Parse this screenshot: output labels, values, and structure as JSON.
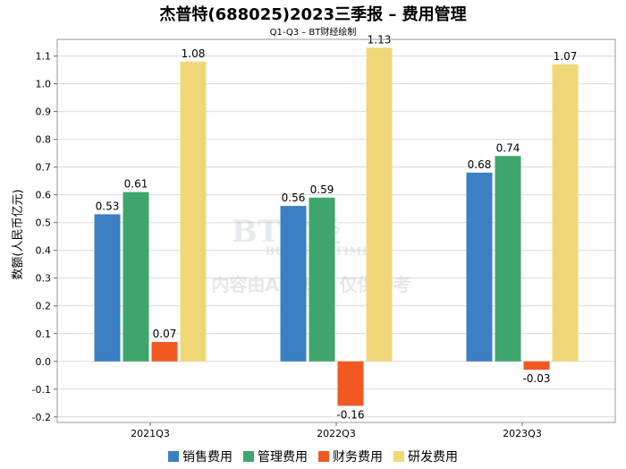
{
  "chart_data": {
    "type": "bar",
    "title": "杰普特(688025)2023三季报 – 费用管理",
    "subtitle": "Q1-Q3 – BT财经绘制",
    "xlabel": "",
    "ylabel": "数额(人民币亿元)",
    "ylim": [
      -0.22,
      1.16
    ],
    "yticks": [
      -0.2,
      -0.1,
      0.0,
      0.1,
      0.2,
      0.3,
      0.4,
      0.5,
      0.6,
      0.7,
      0.8,
      0.9,
      1.0,
      1.1
    ],
    "categories": [
      "2021Q3",
      "2022Q3",
      "2023Q3"
    ],
    "series": [
      {
        "name": "销售费用",
        "color": "#3b7fc4",
        "values": [
          0.53,
          0.56,
          0.68
        ]
      },
      {
        "name": "管理费用",
        "color": "#3ea66c",
        "values": [
          0.61,
          0.59,
          0.74
        ]
      },
      {
        "name": "财务费用",
        "color": "#f05a22",
        "values": [
          0.07,
          -0.16,
          -0.03
        ]
      },
      {
        "name": "研发费用",
        "color": "#f0d878",
        "values": [
          1.08,
          1.13,
          1.07
        ]
      }
    ],
    "grid": true,
    "legend_position": "bottom"
  },
  "watermark": {
    "logo_text": "BT财经",
    "logo_sub": "BUSINESSTIMES",
    "notice": "内容由AI生成，仅供参考"
  }
}
